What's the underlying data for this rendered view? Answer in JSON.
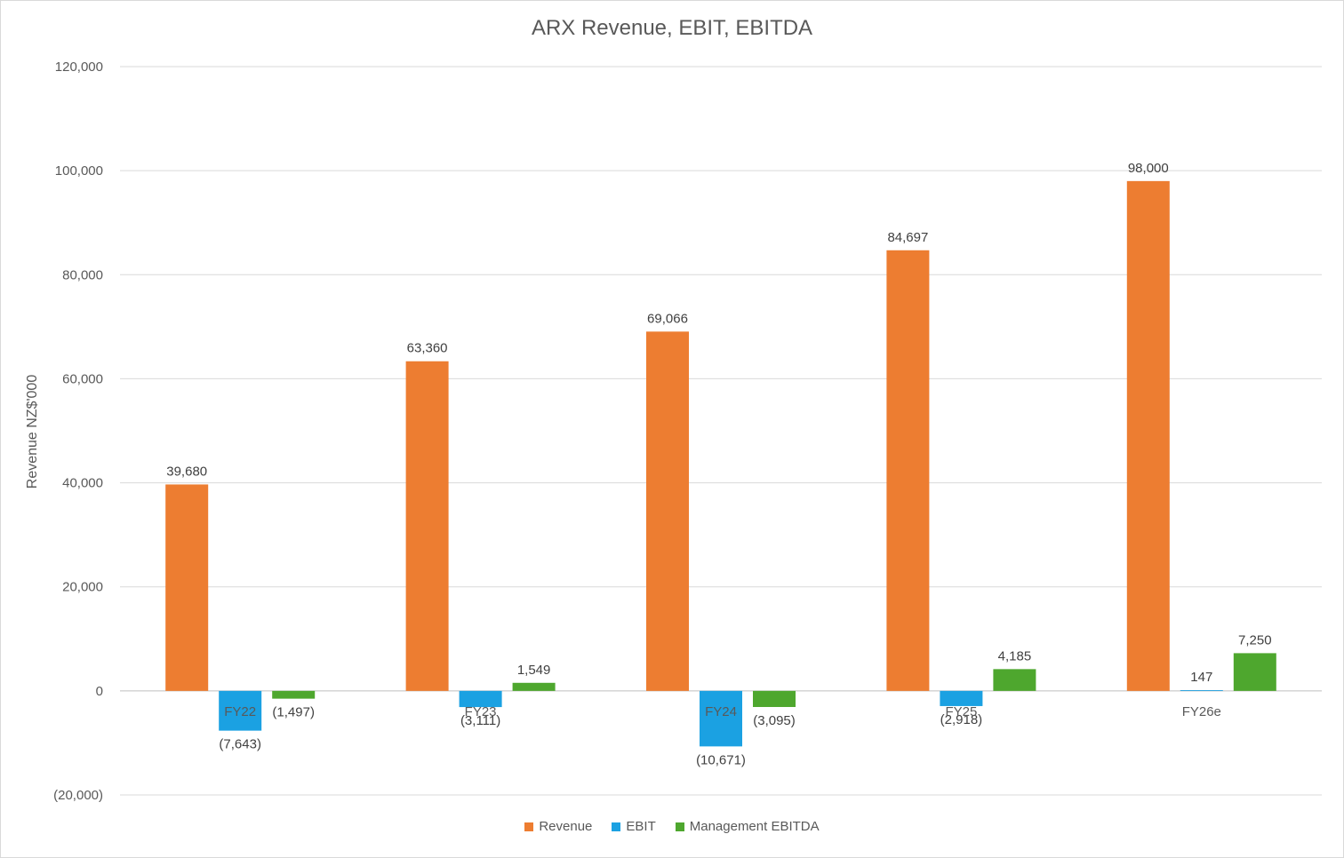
{
  "chart_data": {
    "type": "bar",
    "title": "ARX Revenue, EBIT, EBITDA",
    "ylabel": "Revenue NZ$'000",
    "xlabel": "",
    "ylim": [
      -20000,
      120000
    ],
    "yticks": [
      -20000,
      0,
      20000,
      40000,
      60000,
      80000,
      100000,
      120000
    ],
    "ytick_labels": [
      "(20,000)",
      "0",
      "20,000",
      "40,000",
      "60,000",
      "80,000",
      "100,000",
      "120,000"
    ],
    "grid": true,
    "legend_position": "bottom",
    "categories": [
      "FY22",
      "FY23",
      "FY24",
      "FY25",
      "FY26e"
    ],
    "series": [
      {
        "name": "Revenue",
        "color": "#ED7D31",
        "values": [
          39680,
          63360,
          69066,
          84697,
          98000
        ],
        "labels": [
          "39,680",
          "63,360",
          "69,066",
          "84,697",
          "98,000"
        ]
      },
      {
        "name": "EBIT",
        "color": "#1BA1E2",
        "values": [
          -7643,
          -3111,
          -10671,
          -2918,
          147
        ],
        "labels": [
          "(7,643)",
          "(3,111)",
          "(10,671)",
          "(2,918)",
          "147"
        ]
      },
      {
        "name": "Management EBITDA",
        "color": "#4EA72E",
        "values": [
          -1497,
          1549,
          -3095,
          4185,
          7250
        ],
        "labels": [
          "(1,497)",
          "1,549",
          "(3,095)",
          "4,185",
          "7,250"
        ]
      }
    ]
  }
}
